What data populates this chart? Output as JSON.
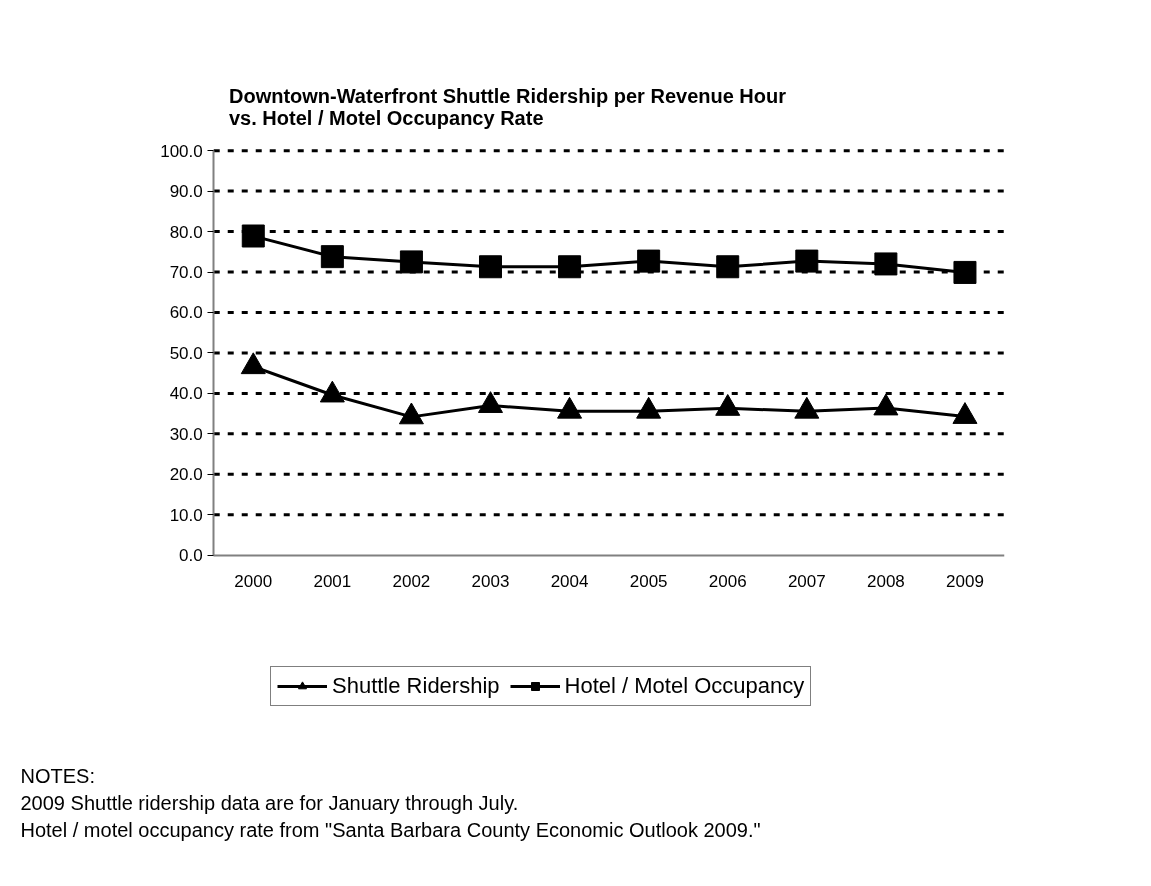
{
  "chart_data": {
    "type": "line",
    "title": "Downtown-Waterfront Shuttle Ridership per Revenue Hour\nvs. Hotel / Motel Occupancy Rate",
    "categories": [
      "2000",
      "2001",
      "2002",
      "2003",
      "2004",
      "2005",
      "2006",
      "2007",
      "2008",
      "2009"
    ],
    "series": [
      {
        "name": "Shuttle Ridership",
        "color": "#000000",
        "marker": "triangle",
        "values": [
          46.6,
          39.6,
          34.2,
          37.0,
          35.6,
          35.6,
          36.3,
          35.6,
          36.4,
          34.3
        ]
      },
      {
        "name": "Hotel / Motel Occupancy",
        "color": "#000000",
        "marker": "square",
        "values": [
          78.9,
          73.8,
          72.5,
          71.3,
          71.3,
          72.7,
          71.3,
          72.7,
          72.0,
          69.9
        ]
      }
    ],
    "ylim": [
      0,
      100
    ],
    "yticks": [
      {
        "value": 0,
        "label": "0.0"
      },
      {
        "value": 10,
        "label": "10.0"
      },
      {
        "value": 20,
        "label": "20.0"
      },
      {
        "value": 30,
        "label": "30.0"
      },
      {
        "value": 40,
        "label": "40.0"
      },
      {
        "value": 50,
        "label": "50.0"
      },
      {
        "value": 60,
        "label": "60.0"
      },
      {
        "value": 70,
        "label": "70.0"
      },
      {
        "value": 80,
        "label": "80.0"
      },
      {
        "value": 90,
        "label": "90.0"
      },
      {
        "value": 100,
        "label": "100.0"
      }
    ],
    "grid": "y",
    "legend": "bottom",
    "line_style": "solid",
    "annotations": [
      "NOTES:",
      "2009 Shuttle ridership data are for January through July.",
      "Hotel / motel occupancy rate from \"Santa Barbara County Economic Outlook 2009.\""
    ]
  }
}
